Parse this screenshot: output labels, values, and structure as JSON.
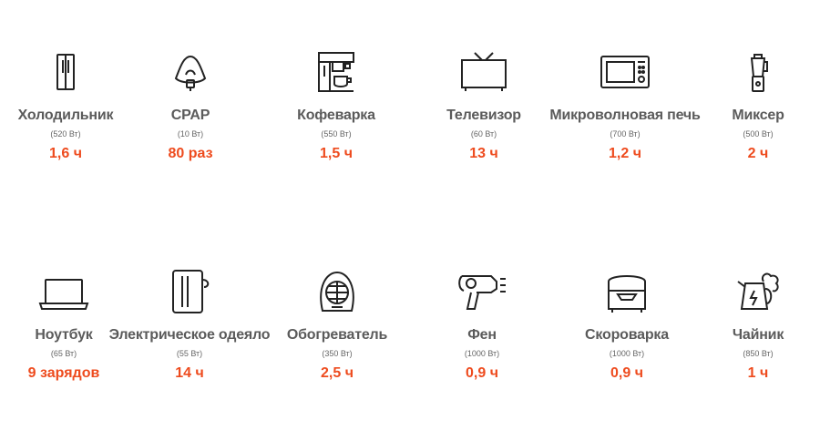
{
  "accent_color": "#ee4b1e",
  "label_color": "#5b5b5b",
  "items": [
    {
      "name": "Холодильник",
      "power": "(520 Вт)",
      "time": "1,6 ч",
      "icon": "fridge-icon"
    },
    {
      "name": "CPAP",
      "power": "(10 Вт)",
      "time": "80 раз",
      "icon": "cpap-mask-icon"
    },
    {
      "name": "Кофеварка",
      "power": "(550 Вт)",
      "time": "1,5 ч",
      "icon": "coffee-maker-icon"
    },
    {
      "name": "Телевизор",
      "power": "(60 Вт)",
      "time": "13 ч",
      "icon": "tv-icon"
    },
    {
      "name": "Микроволновая печь",
      "power": "(700 Вт)",
      "time": "1,2 ч",
      "icon": "microwave-icon"
    },
    {
      "name": "Миксер",
      "power": "(500 Вт)",
      "time": "2 ч",
      "icon": "blender-icon"
    },
    {
      "name": "Ноутбук",
      "power": "(65 Вт)",
      "time": "9 зарядов",
      "icon": "laptop-icon"
    },
    {
      "name": "Электрическое одеяло",
      "power": "(55 Вт)",
      "time": "14 ч",
      "icon": "electric-blanket-icon"
    },
    {
      "name": "Обогреватель",
      "power": "(350 Вт)",
      "time": "2,5 ч",
      "icon": "heater-icon"
    },
    {
      "name": "Фен",
      "power": "(1000 Вт)",
      "time": "0,9 ч",
      "icon": "hair-dryer-icon"
    },
    {
      "name": "Скороварка",
      "power": "(1000 Вт)",
      "time": "0,9 ч",
      "icon": "pressure-cooker-icon"
    },
    {
      "name": "Чайник",
      "power": "(850 Вт)",
      "time": "1 ч",
      "icon": "kettle-icon"
    }
  ]
}
